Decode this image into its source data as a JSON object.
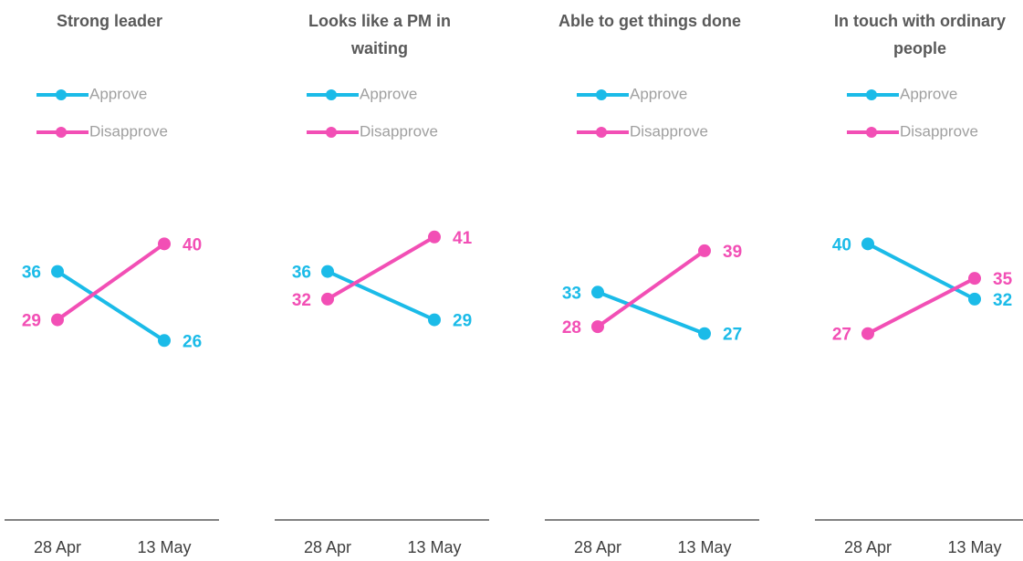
{
  "chart_data": [
    {
      "type": "line",
      "title": "Strong leader",
      "categories": [
        "28 Apr",
        "13 May"
      ],
      "ylim": [
        0,
        60
      ],
      "series": [
        {
          "name": "Approve",
          "color": "#1bbbe8",
          "values": [
            36,
            26
          ]
        },
        {
          "name": "Disapprove",
          "color": "#f24fb5",
          "values": [
            29,
            40
          ]
        }
      ]
    },
    {
      "type": "line",
      "title": "Looks like a PM in waiting",
      "categories": [
        "28 Apr",
        "13 May"
      ],
      "ylim": [
        0,
        60
      ],
      "series": [
        {
          "name": "Approve",
          "color": "#1bbbe8",
          "values": [
            36,
            29
          ]
        },
        {
          "name": "Disapprove",
          "color": "#f24fb5",
          "values": [
            32,
            41
          ]
        }
      ]
    },
    {
      "type": "line",
      "title": "Able to get things done",
      "categories": [
        "28 Apr",
        "13 May"
      ],
      "ylim": [
        0,
        60
      ],
      "series": [
        {
          "name": "Approve",
          "color": "#1bbbe8",
          "values": [
            33,
            27
          ]
        },
        {
          "name": "Disapprove",
          "color": "#f24fb5",
          "values": [
            28,
            39
          ]
        }
      ]
    },
    {
      "type": "line",
      "title": "In touch with ordinary people",
      "categories": [
        "28 Apr",
        "13 May"
      ],
      "ylim": [
        0,
        60
      ],
      "series": [
        {
          "name": "Approve",
          "color": "#1bbbe8",
          "values": [
            40,
            32
          ]
        },
        {
          "name": "Disapprove",
          "color": "#f24fb5",
          "values": [
            27,
            35
          ]
        }
      ]
    }
  ]
}
